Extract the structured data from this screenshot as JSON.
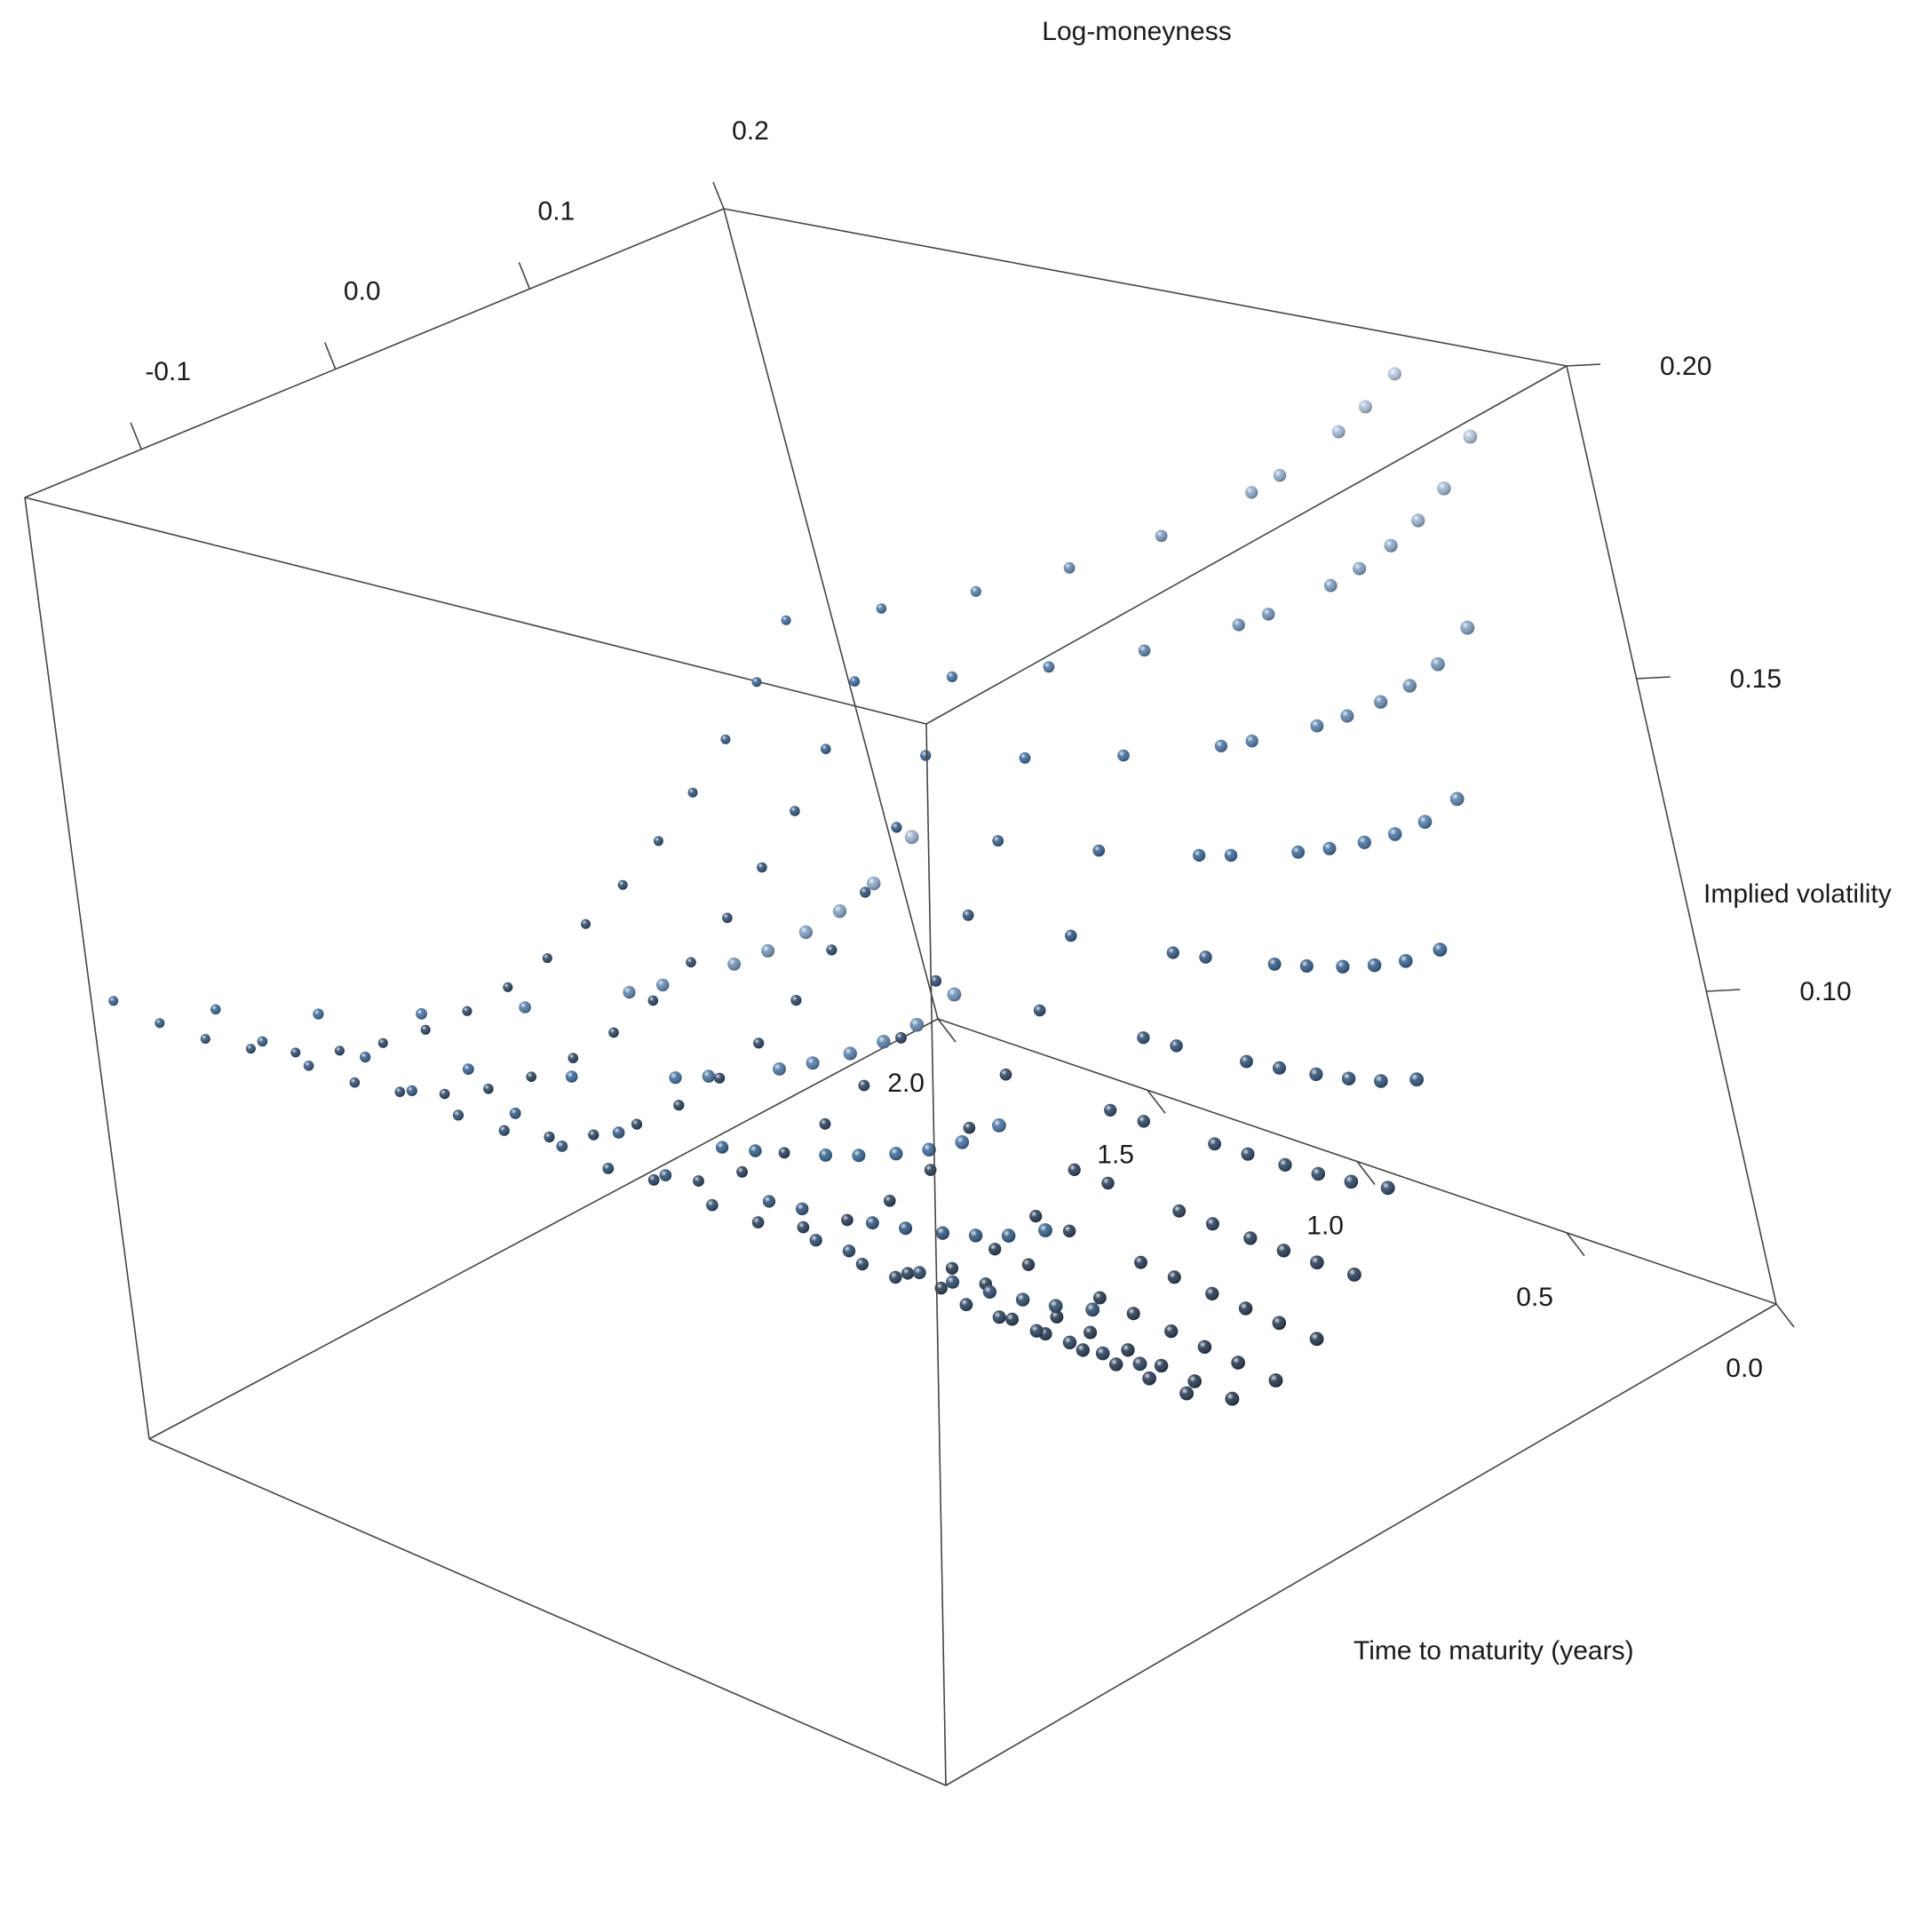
{
  "chart_data": {
    "type": "scatter",
    "subtype": "3d-scatter-spheres",
    "title": "",
    "axes": {
      "x": {
        "label": "Log-moneyness",
        "range": [
          -0.16,
          0.2
        ],
        "ticks": [
          {
            "value": -0.1,
            "label": "-0.1"
          },
          {
            "value": 0.0,
            "label": "0.0"
          },
          {
            "value": 0.1,
            "label": "0.1"
          },
          {
            "value": 0.2,
            "label": "0.2"
          }
        ]
      },
      "y": {
        "label": "Time to maturity (years)",
        "range": [
          0.0,
          2.0
        ],
        "ticks": [
          {
            "value": 0.0,
            "label": "0.0"
          },
          {
            "value": 0.5,
            "label": "0.5"
          },
          {
            "value": 1.0,
            "label": "1.0"
          },
          {
            "value": 1.5,
            "label": "1.5"
          },
          {
            "value": 2.0,
            "label": "2.0"
          }
        ]
      },
      "z": {
        "label": "Implied volatility",
        "range": [
          0.05,
          0.2
        ],
        "ticks": [
          {
            "value": 0.1,
            "label": "0.10"
          },
          {
            "value": 0.15,
            "label": "0.15"
          },
          {
            "value": 0.2,
            "label": "0.20"
          }
        ]
      }
    },
    "maturities": [
      0.08,
      0.17,
      0.25,
      0.33,
      0.42,
      0.5,
      0.67,
      0.75,
      1.0,
      1.25,
      1.5,
      1.75,
      2.0
    ],
    "moneyness_range": [
      -0.15,
      0.18
    ],
    "moneyness_points_per_maturity": 18,
    "smile": {
      "atm_vol_short": 0.075,
      "atm_vol_long": 0.09,
      "curvature_short": 5.5,
      "curvature_long": 1.2,
      "skew": -0.1
    },
    "color_scale": {
      "low": "#0d0d14",
      "mid": "#2e5f93",
      "high": "#b8c8de"
    },
    "grid": false,
    "legend": "none"
  }
}
